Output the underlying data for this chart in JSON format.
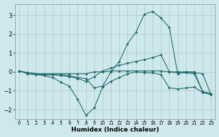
{
  "xlabel": "Humidex (Indice chaleur)",
  "bg_color": "#cfe8ec",
  "grid_color": "#aecdd4",
  "line_color": "#1e6b6b",
  "xlim": [
    -0.5,
    23.5
  ],
  "ylim": [
    -2.5,
    3.6
  ],
  "yticks": [
    -2,
    -1,
    0,
    1,
    2,
    3
  ],
  "xticks": [
    0,
    1,
    2,
    3,
    4,
    5,
    6,
    7,
    8,
    9,
    10,
    11,
    12,
    13,
    14,
    15,
    16,
    17,
    18,
    19,
    20,
    21,
    22,
    23
  ],
  "series": [
    {
      "x": [
        0,
        1,
        2,
        3,
        4,
        5,
        6,
        7,
        8,
        9,
        10,
        11,
        12,
        13,
        14,
        15,
        16,
        17,
        18,
        19,
        20,
        21,
        22,
        23
      ],
      "y": [
        0.05,
        -0.1,
        -0.15,
        -0.2,
        -0.3,
        -0.55,
        -0.75,
        -1.45,
        -2.3,
        -1.9,
        -0.8,
        -0.5,
        -0.3,
        -0.1,
        0.0,
        -0.05,
        -0.05,
        -0.15,
        -0.85,
        -0.9,
        -0.85,
        -0.8,
        -1.1,
        -1.2
      ]
    },
    {
      "x": [
        0,
        1,
        2,
        3,
        4,
        5,
        6,
        7,
        8,
        9,
        10,
        11,
        12,
        13,
        14,
        15,
        16,
        17,
        18,
        19,
        20,
        21,
        22,
        23
      ],
      "y": [
        0.05,
        -0.05,
        -0.1,
        -0.15,
        -0.15,
        -0.2,
        -0.25,
        -0.35,
        -0.5,
        -0.25,
        0.05,
        0.2,
        0.35,
        0.45,
        0.55,
        0.65,
        0.75,
        0.9,
        0.0,
        -0.05,
        -0.05,
        -0.1,
        -1.05,
        -1.15
      ]
    },
    {
      "x": [
        0,
        1,
        2,
        3,
        4,
        5,
        6,
        7,
        8,
        9,
        10,
        11,
        12,
        13,
        14,
        15,
        16,
        17,
        18,
        19,
        20,
        21,
        22,
        23
      ],
      "y": [
        0.05,
        -0.05,
        -0.1,
        -0.1,
        -0.1,
        -0.1,
        -0.1,
        -0.1,
        -0.1,
        0.0,
        0.0,
        0.05,
        0.05,
        0.05,
        0.05,
        0.05,
        0.05,
        0.05,
        0.0,
        0.0,
        0.0,
        0.0,
        -1.05,
        -1.15
      ]
    },
    {
      "x": [
        0,
        1,
        2,
        3,
        4,
        5,
        6,
        7,
        8,
        9,
        10,
        11,
        12,
        13,
        14,
        15,
        16,
        17,
        18,
        19,
        20,
        21,
        22,
        23
      ],
      "y": [
        0.05,
        -0.05,
        -0.1,
        -0.15,
        -0.15,
        -0.15,
        -0.2,
        -0.3,
        -0.35,
        -0.85,
        -0.75,
        0.0,
        0.55,
        1.5,
        2.1,
        3.05,
        3.2,
        2.85,
        2.35,
        -0.1,
        0.0,
        -0.05,
        -0.1,
        -1.2
      ]
    }
  ]
}
